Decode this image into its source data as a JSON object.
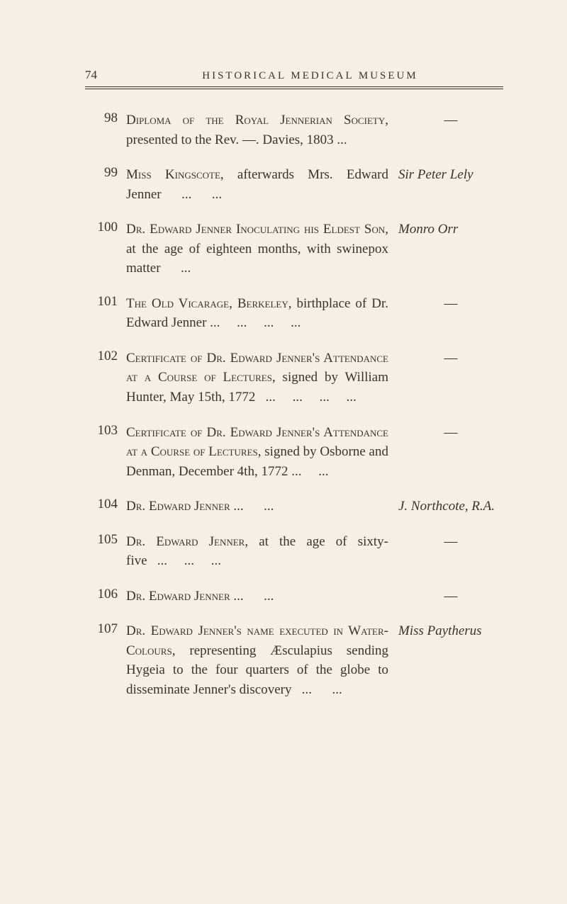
{
  "page_number": "74",
  "running_head": "HISTORICAL MEDICAL MUSEUM",
  "entries": [
    {
      "num": "98",
      "body_html": "<span class='sc'>Diploma of the Royal Jennerian Society</span>, presented to the Rev. —. Davies, 1803 ...",
      "attr": "—",
      "attr_dash": true
    },
    {
      "num": "99",
      "body_html": "<span class='sc'>Miss Kingscote</span>, afterwards Mrs. Edward Jenner&nbsp;&nbsp;&nbsp;&nbsp;&nbsp;&nbsp;...&nbsp;&nbsp;&nbsp;&nbsp;&nbsp;&nbsp;...",
      "attr": "Sir Peter Lely",
      "attr_dash": false
    },
    {
      "num": "100",
      "body_html": "<span class='sc'>Dr. Edward Jenner Inoculating his Eldest Son</span>, at the age of eighteen months, with swinepox matter&nbsp;&nbsp;&nbsp;&nbsp;&nbsp;&nbsp;...",
      "attr": "Monro Orr",
      "attr_dash": false
    },
    {
      "num": "101",
      "body_html": "<span class='sc'>The Old Vicarage, Berkeley</span>, birthplace of Dr. Edward Jenner ...&nbsp;&nbsp;&nbsp;&nbsp;&nbsp;...&nbsp;&nbsp;&nbsp;&nbsp;&nbsp;...&nbsp;&nbsp;&nbsp;&nbsp;&nbsp;...",
      "attr": "—",
      "attr_dash": true
    },
    {
      "num": "102",
      "body_html": "<span class='sc'>Certificate of Dr. Edward Jenner's Attendance at a Course of Lectures</span>, signed by William Hunter, May 15th, 1772&nbsp;&nbsp;&nbsp;...&nbsp;&nbsp;&nbsp;&nbsp;&nbsp;...&nbsp;&nbsp;&nbsp;&nbsp;&nbsp;...&nbsp;&nbsp;&nbsp;&nbsp;&nbsp;...",
      "attr": "—",
      "attr_dash": true
    },
    {
      "num": "103",
      "body_html": "<span class='sc'>Certificate of Dr. Edward Jenner's Attendance at a Course of Lectures</span>, signed by Osborne and Denman, December 4th, 1772 ...&nbsp;&nbsp;&nbsp;&nbsp;&nbsp;...",
      "attr": "—",
      "attr_dash": true
    },
    {
      "num": "104",
      "body_html": "<span class='sc'>Dr. Edward Jenner</span> ...&nbsp;&nbsp;&nbsp;&nbsp;&nbsp;&nbsp;...",
      "attr": "J. Northcote, R.A.",
      "attr_dash": false
    },
    {
      "num": "105",
      "body_html": "<span class='sc'>Dr. Edward Jenner</span>, at the age of sixty-five&nbsp;&nbsp;&nbsp;...&nbsp;&nbsp;&nbsp;&nbsp;&nbsp;...&nbsp;&nbsp;&nbsp;&nbsp;&nbsp;...",
      "attr": "—",
      "attr_dash": true
    },
    {
      "num": "106",
      "body_html": "<span class='sc'>Dr. Edward Jenner</span> ...&nbsp;&nbsp;&nbsp;&nbsp;&nbsp;&nbsp;...",
      "attr": "—",
      "attr_dash": true
    },
    {
      "num": "107",
      "body_html": "<span class='sc'>Dr. Edward Jenner's name executed in Water-Colours</span>, representing Æsculapius sending Hygeia to the four quarters of the globe to disseminate Jenner's discovery&nbsp;&nbsp;&nbsp;...&nbsp;&nbsp;&nbsp;&nbsp;&nbsp;&nbsp;...",
      "attr": "Miss Paytherus",
      "attr_dash": false
    }
  ]
}
